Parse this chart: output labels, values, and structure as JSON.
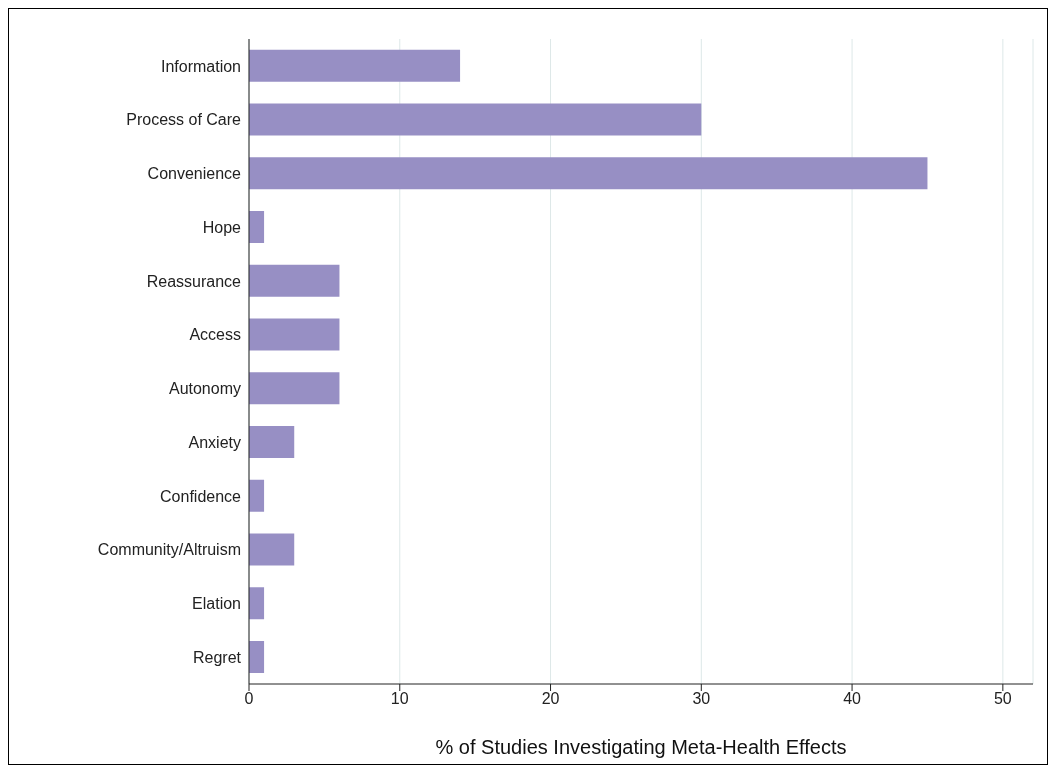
{
  "chart_data": {
    "type": "bar",
    "orientation": "horizontal",
    "xlabel": "% of Studies Investigating Meta-Health Effects",
    "categories": [
      "Information",
      "Process of Care",
      "Convenience",
      "Hope",
      "Reassurance",
      "Access",
      "Autonomy",
      "Anxiety",
      "Confidence",
      "Community/Altruism",
      "Elation",
      "Regret"
    ],
    "values": [
      14,
      30,
      45,
      1,
      6,
      6,
      6,
      3,
      1,
      3,
      1,
      1
    ],
    "color": "#978fc4",
    "xlim": [
      0,
      52
    ],
    "xticks": [
      0,
      10,
      20,
      30,
      40,
      50
    ],
    "grid": "x",
    "legend": false
  }
}
